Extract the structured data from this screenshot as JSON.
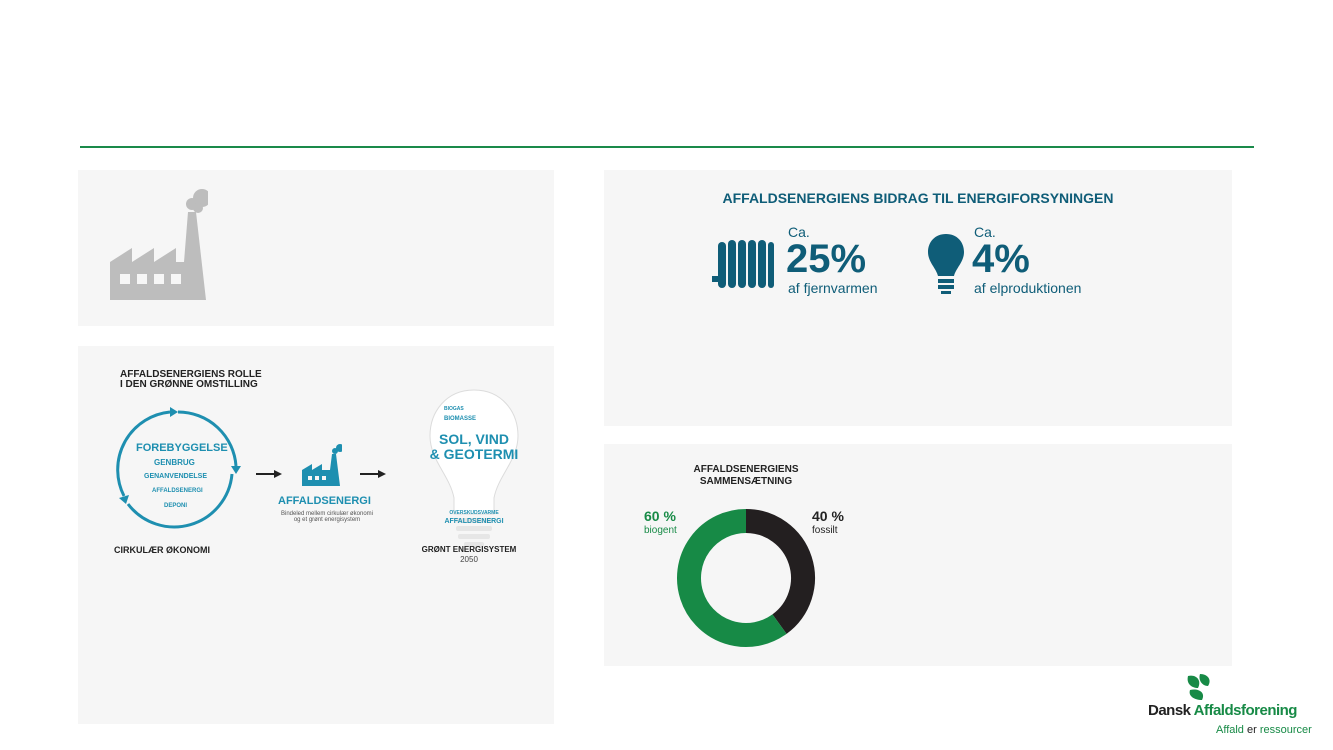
{
  "colors": {
    "accent_green": "#1a8a4a",
    "blue_dark": "#0f5d78",
    "teal": "#1e8fb0",
    "donut_dark": "#231f20",
    "donut_green": "#178a46"
  },
  "factory_panel": {
    "icon": "factory-icon"
  },
  "role": {
    "title_line1": "AFFALDSENERGIENS ROLLE",
    "title_line2": "I DEN GRØNNE OMSTILLING",
    "cycle_items": [
      "FOREBYGGELSE",
      "GENBRUG",
      "GENANVENDELSE",
      "AFFALDSENERGI",
      "DEPONI"
    ],
    "cycle_caption": "CIRKULÆR ØKONOMI",
    "center_title": "AFFALDSENERGI",
    "center_sub1": "Bindeled mellem cirkulær økonomi",
    "center_sub2": "og et grønt energisystem",
    "bulb_small1": "BIOGAS",
    "bulb_small2": "BIOMASSE",
    "bulb_big1": "SOL, VIND",
    "bulb_big2": "& GEOTERMI",
    "bulb_lower1": "OVERSKUDSVARME",
    "bulb_lower2": "AFFALDSENERGI",
    "bulb_caption": "GRØNT ENERGISYSTEM",
    "bulb_year": "2050"
  },
  "contribution": {
    "title": "AFFALDSENERGIENS BIDRAG TIL ENERGIFORSYNINGEN",
    "heat": {
      "prefix": "Ca.",
      "value": "25%",
      "label": "af fjernvarmen",
      "icon": "radiator-icon"
    },
    "power": {
      "prefix": "Ca.",
      "value": "4%",
      "label": "af elproduktionen",
      "icon": "lightbulb-icon"
    }
  },
  "composition": {
    "title_line1": "AFFALDSENERGIENS",
    "title_line2": "SAMMENSÆTNING",
    "biogent_value": "60 %",
    "biogent_label": "biogent",
    "fossil_value": "40 %",
    "fossil_label": "fossilt"
  },
  "chart_data": {
    "type": "pie",
    "categories": [
      "fossilt",
      "biogent"
    ],
    "values": [
      40,
      60
    ],
    "title": "AFFALDSENERGIENS SAMMENSÆTNING"
  },
  "logo": {
    "name_part1": "Dansk ",
    "name_part2": "Affaldsforening",
    "tag_part1": "Affald",
    "tag_part2": " er ",
    "tag_part3": "ressourcer"
  }
}
